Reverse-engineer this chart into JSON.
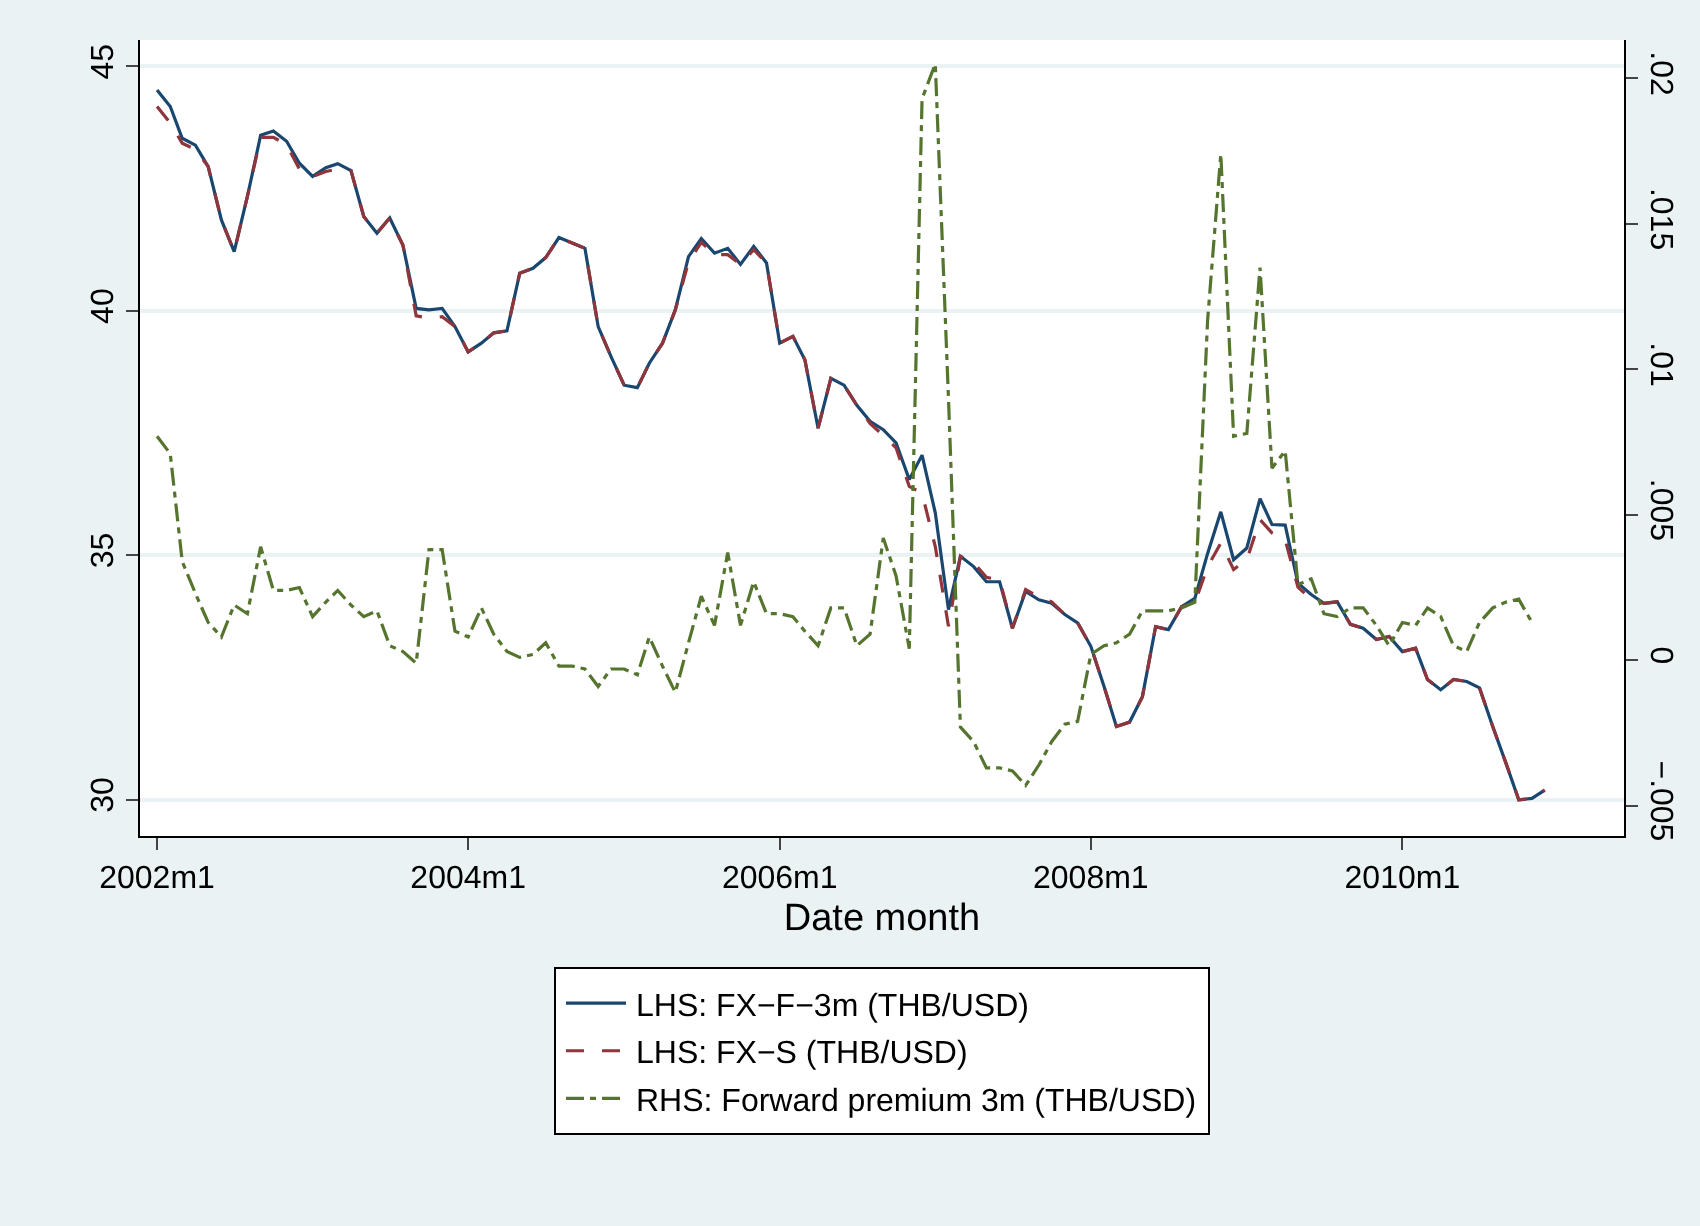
{
  "chart_data": {
    "type": "line",
    "xlabel": "Date month",
    "x": [
      "2002-01",
      "2002-02",
      "2002-03",
      "2002-04",
      "2002-05",
      "2002-06",
      "2002-07",
      "2002-08",
      "2002-09",
      "2002-10",
      "2002-11",
      "2002-12",
      "2003-01",
      "2003-02",
      "2003-03",
      "2003-04",
      "2003-05",
      "2003-06",
      "2003-07",
      "2003-08",
      "2003-09",
      "2003-10",
      "2003-11",
      "2003-12",
      "2004-01",
      "2004-02",
      "2004-03",
      "2004-04",
      "2004-05",
      "2004-06",
      "2004-07",
      "2004-08",
      "2004-09",
      "2004-10",
      "2004-11",
      "2004-12",
      "2005-01",
      "2005-02",
      "2005-03",
      "2005-04",
      "2005-05",
      "2005-06",
      "2005-07",
      "2005-08",
      "2005-09",
      "2005-10",
      "2005-11",
      "2005-12",
      "2006-01",
      "2006-02",
      "2006-03",
      "2006-04",
      "2006-05",
      "2006-06",
      "2006-07",
      "2006-08",
      "2006-09",
      "2006-10",
      "2006-11",
      "2006-12",
      "2007-01",
      "2007-02",
      "2007-03",
      "2007-04",
      "2007-05",
      "2007-06",
      "2007-07",
      "2007-08",
      "2007-09",
      "2007-10",
      "2007-11",
      "2007-12",
      "2008-01",
      "2008-02",
      "2008-03",
      "2008-04",
      "2008-05",
      "2008-06",
      "2008-07",
      "2008-08",
      "2008-09",
      "2008-10",
      "2008-11",
      "2008-12",
      "2009-01",
      "2009-02",
      "2009-03",
      "2009-04",
      "2009-05",
      "2009-06",
      "2009-07",
      "2009-08",
      "2009-09",
      "2009-10",
      "2009-11",
      "2009-12",
      "2010-01",
      "2010-02",
      "2010-03",
      "2010-04",
      "2010-05",
      "2010-06",
      "2010-07",
      "2010-08",
      "2010-09",
      "2010-10",
      "2010-11",
      "2010-12"
    ],
    "series": [
      {
        "name": "LHS: FX−F−3m (THB/USD)",
        "color": "#1a476f",
        "line_style": "solid",
        "values": [
          44.52,
          44.18,
          43.53,
          43.39,
          42.95,
          41.86,
          41.21,
          42.34,
          43.59,
          43.68,
          43.47,
          43.02,
          42.75,
          42.93,
          43.01,
          42.87,
          41.93,
          41.59,
          41.9,
          41.34,
          40.05,
          40.02,
          40.05,
          39.68,
          39.16,
          39.34,
          39.55,
          39.59,
          40.77,
          40.87,
          41.09,
          41.5,
          41.39,
          41.28,
          39.68,
          39.07,
          38.48,
          38.43,
          38.93,
          39.34,
          40.02,
          41.11,
          41.48,
          41.18,
          41.28,
          40.95,
          41.32,
          40.98,
          39.34,
          39.48,
          39.0,
          37.6,
          38.62,
          38.48,
          38.07,
          37.74,
          37.57,
          37.3,
          36.55,
          37.05,
          35.87,
          33.89,
          34.98,
          34.77,
          34.46,
          34.46,
          33.51,
          34.26,
          34.09,
          34.02,
          33.79,
          33.62,
          33.14,
          32.32,
          31.5,
          31.59,
          32.11,
          33.54,
          33.48,
          33.95,
          34.12,
          35.04,
          35.89,
          34.91,
          35.15,
          36.16,
          35.63,
          35.62,
          34.43,
          34.2,
          34.02,
          34.05,
          33.59,
          33.51,
          33.28,
          33.34,
          33.03,
          33.1,
          32.46,
          32.25,
          32.46,
          32.42,
          32.29,
          31.5,
          30.75,
          30.0,
          30.03,
          30.2
        ]
      },
      {
        "name": "LHS: FX−S (THB/USD)",
        "color": "#90353b",
        "line_style": "dashed",
        "values": [
          44.18,
          43.84,
          43.43,
          43.3,
          42.95,
          41.86,
          41.21,
          42.34,
          43.55,
          43.55,
          43.4,
          42.9,
          42.75,
          42.85,
          42.9,
          42.87,
          41.93,
          41.59,
          41.9,
          41.34,
          39.9,
          39.85,
          39.88,
          39.68,
          39.16,
          39.34,
          39.55,
          39.59,
          40.77,
          40.87,
          41.09,
          41.5,
          41.39,
          41.28,
          39.68,
          39.07,
          38.48,
          38.43,
          38.93,
          39.34,
          40.02,
          41.0,
          41.4,
          41.15,
          41.15,
          40.95,
          41.25,
          40.98,
          39.34,
          39.48,
          39.0,
          37.6,
          38.62,
          38.48,
          38.07,
          37.7,
          37.45,
          37.2,
          36.41,
          36.27,
          35.18,
          33.55,
          34.98,
          34.85,
          34.55,
          34.5,
          33.51,
          34.3,
          34.15,
          34.05,
          33.79,
          33.62,
          33.14,
          32.32,
          31.5,
          31.59,
          32.11,
          33.54,
          33.48,
          33.95,
          34.03,
          34.77,
          35.25,
          34.71,
          34.91,
          35.73,
          35.46,
          35.32,
          34.35,
          34.1,
          34.02,
          34.05,
          33.59,
          33.51,
          33.28,
          33.34,
          33.03,
          33.1,
          32.46,
          32.25,
          32.46,
          32.42,
          32.29,
          31.5,
          30.75,
          30.0,
          30.03,
          30.2
        ]
      },
      {
        "name": "RHS: Forward premium 3m (THB/USD)",
        "color": "#55752f",
        "line_style": "dashdot",
        "axis": "y2",
        "values": [
          0.0077,
          0.0071,
          0.0034,
          0.0023,
          0.0013,
          0.0008,
          0.0019,
          0.0016,
          0.0039,
          0.0024,
          0.0024,
          0.0025,
          0.0015,
          0.002,
          0.0024,
          0.0019,
          0.0015,
          0.0017,
          0.0005,
          0.0003,
          -0.0001,
          0.0038,
          0.0038,
          0.001,
          0.0008,
          0.0018,
          0.0009,
          0.0003,
          0.0001,
          0.0002,
          0.0006,
          -0.0002,
          -0.0002,
          -0.0003,
          -0.0009,
          -0.0003,
          -0.0003,
          -0.0005,
          0.0008,
          -0.0002,
          -0.0011,
          0.0006,
          0.0022,
          0.0012,
          0.0037,
          0.0012,
          0.0027,
          0.0016,
          0.0016,
          0.0015,
          0.001,
          0.0005,
          0.0018,
          0.0018,
          0.0005,
          0.0009,
          0.0042,
          0.0029,
          0.0004,
          0.0193,
          0.0205,
          0.009,
          -0.0023,
          -0.0028,
          -0.0037,
          -0.0037,
          -0.0038,
          -0.0043,
          -0.0036,
          -0.0028,
          -0.0022,
          -0.0021,
          0.0002,
          0.0005,
          0.0006,
          0.0009,
          0.0017,
          0.0017,
          0.0017,
          0.0018,
          0.002,
          0.0117,
          0.0174,
          0.0077,
          0.0078,
          0.0135,
          0.0066,
          0.0072,
          0.0026,
          0.0028,
          0.0016,
          0.0015,
          0.0018,
          0.0018,
          0.0012,
          0.0005,
          0.0013,
          0.0012,
          0.0018,
          0.0015,
          0.0005,
          0.0003,
          0.0013,
          0.0018,
          0.002,
          0.0021,
          0.0013,
          null
        ]
      }
    ],
    "xlim": [
      "2001-11-22",
      "2011-06-05"
    ],
    "xticks": [
      {
        "value": "2002-01",
        "label": "2002m1"
      },
      {
        "value": "2004-01",
        "label": "2004m1"
      },
      {
        "value": "2006-01",
        "label": "2006m1"
      },
      {
        "value": "2008-01",
        "label": "2008m1"
      },
      {
        "value": "2010-01",
        "label": "2010m1"
      }
    ],
    "ylim": [
      29.26,
      45.54
    ],
    "yticks": [
      30,
      35,
      40,
      45
    ],
    "y2lim": [
      -0.00604,
      0.02132
    ],
    "y2ticks": [
      {
        "value": -0.005,
        "label": "−.005"
      },
      {
        "value": 0,
        "label": "0"
      },
      {
        "value": 0.005,
        "label": ".005"
      },
      {
        "value": 0.01,
        "label": ".01"
      },
      {
        "value": 0.015,
        "label": ".015"
      },
      {
        "value": 0.02,
        "label": ".02"
      }
    ],
    "grid": "y",
    "legend": "bottom",
    "marker": "none"
  }
}
